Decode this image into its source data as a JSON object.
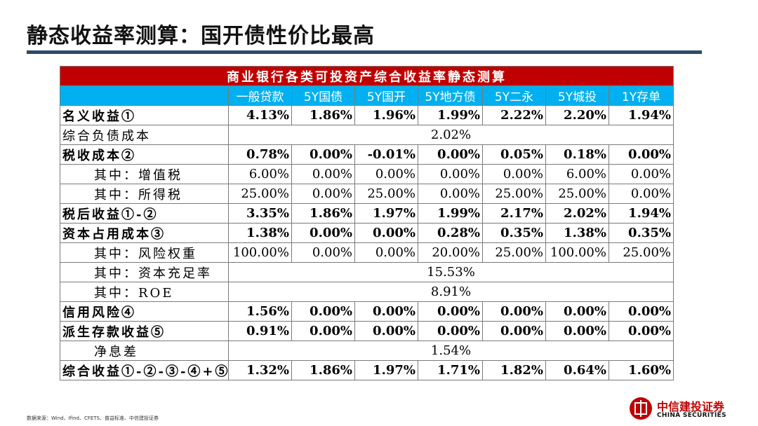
{
  "slide": {
    "title": "静态收益率测算：国开债性价比最高",
    "source": "数据来源：Wind、Ifind、CFETS、普益标准、中信建投证券",
    "logo": {
      "cn": "中信建投证券",
      "en": "CHINA SECURITIES"
    },
    "colors": {
      "caption": "#c00000",
      "header": "#00b0f0",
      "rule": "#2e4a6b"
    }
  },
  "table": {
    "caption": "商业银行各类可投资产综合收益率静态测算",
    "headers": [
      "",
      "一般贷款",
      "5Y国债",
      "5Y国开",
      "5Y地方债",
      "5Y二永",
      "5Y城投",
      "1Y存单"
    ],
    "rows": [
      {
        "label": "名义收益①",
        "values": [
          "4.13%",
          "1.86%",
          "1.96%",
          "1.99%",
          "2.22%",
          "2.20%",
          "1.94%"
        ]
      },
      {
        "label": "综合负债成本",
        "merged": "2.02%"
      },
      {
        "label": "税收成本②",
        "values": [
          "0.78%",
          "0.00%",
          "-0.01%",
          "0.00%",
          "0.05%",
          "0.18%",
          "0.00%"
        ]
      },
      {
        "label": "其中：增值税",
        "values": [
          "6.00%",
          "0.00%",
          "0.00%",
          "0.00%",
          "0.00%",
          "6.00%",
          "0.00%"
        ]
      },
      {
        "label": "其中：所得税",
        "values": [
          "25.00%",
          "0.00%",
          "25.00%",
          "0.00%",
          "25.00%",
          "25.00%",
          "0.00%"
        ]
      },
      {
        "label": "税后收益①-②",
        "values": [
          "3.35%",
          "1.86%",
          "1.97%",
          "1.99%",
          "2.17%",
          "2.02%",
          "1.94%"
        ]
      },
      {
        "label": "资本占用成本③",
        "values": [
          "1.38%",
          "0.00%",
          "0.00%",
          "0.28%",
          "0.35%",
          "1.38%",
          "0.35%"
        ]
      },
      {
        "label": "其中：风险权重",
        "values": [
          "100.00%",
          "0.00%",
          "0.00%",
          "20.00%",
          "25.00%",
          "100.00%",
          "25.00%"
        ]
      },
      {
        "label": "其中：资本充足率",
        "merged": "15.53%"
      },
      {
        "label": "其中：ROE",
        "merged": "8.91%"
      },
      {
        "label": "信用风险④",
        "values": [
          "1.56%",
          "0.00%",
          "0.00%",
          "0.00%",
          "0.00%",
          "0.00%",
          "0.00%"
        ]
      },
      {
        "label": "派生存款收益⑤",
        "values": [
          "0.91%",
          "0.00%",
          "0.00%",
          "0.00%",
          "0.00%",
          "0.00%",
          "0.00%"
        ]
      },
      {
        "label": "净息差",
        "merged": "1.54%"
      },
      {
        "label": "综合收益①-②-③-④+⑤",
        "values": [
          "1.32%",
          "1.86%",
          "1.97%",
          "1.71%",
          "1.82%",
          "0.64%",
          "1.60%"
        ]
      }
    ]
  }
}
